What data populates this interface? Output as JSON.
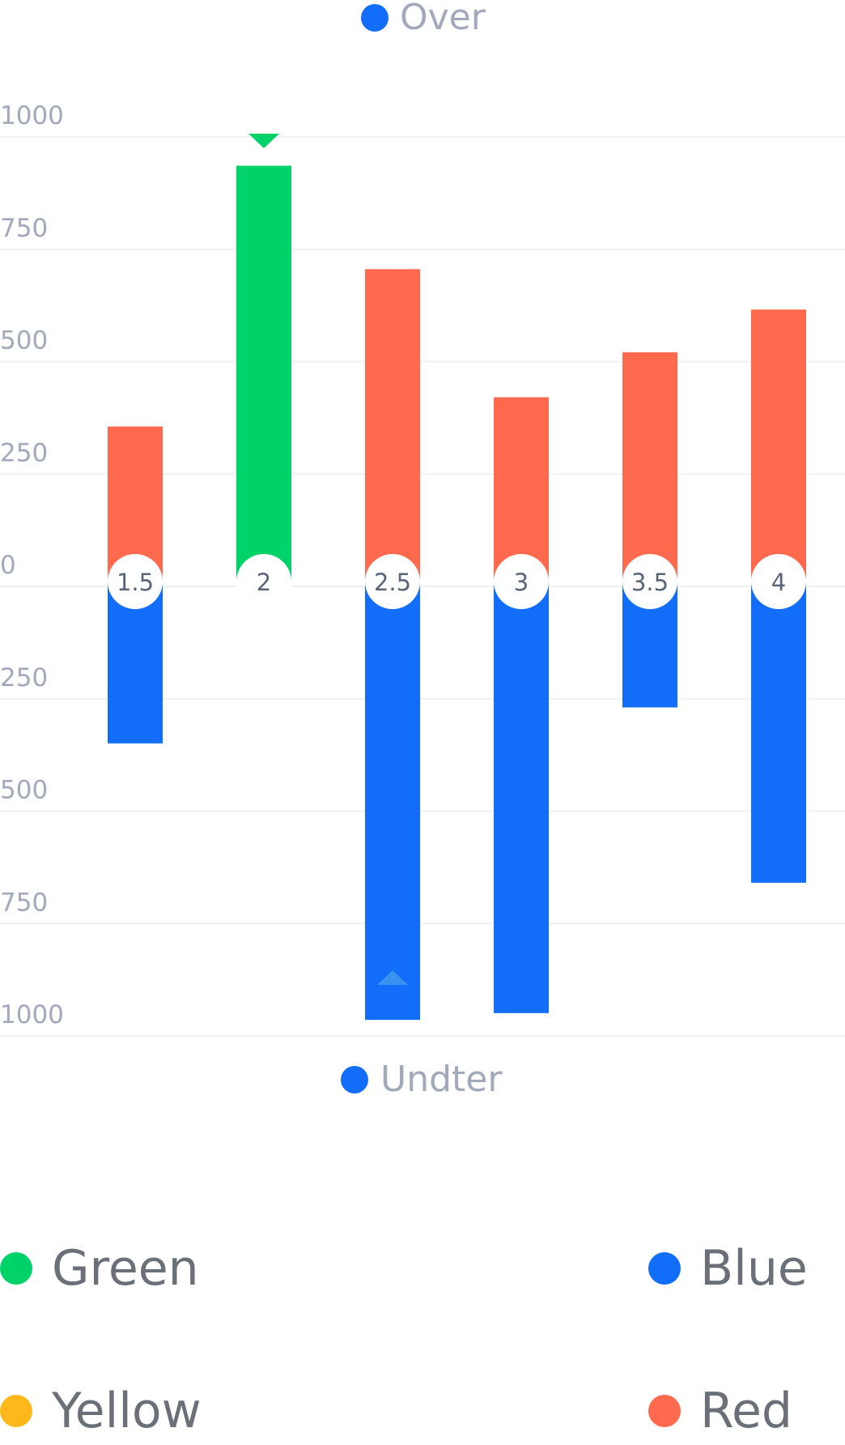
{
  "chart_data": {
    "type": "bar",
    "categories": [
      "1.5",
      "2",
      "2.5",
      "3",
      "3.5",
      "4"
    ],
    "series": [
      {
        "name": "Over",
        "values": [
          345,
          925,
          695,
          410,
          510,
          605
        ]
      },
      {
        "name": "Undter",
        "values": [
          -360,
          null,
          -975,
          -960,
          -280,
          -670
        ]
      }
    ],
    "bar_colors": {
      "positive": [
        "#ff6a4f",
        "#00d26a",
        "#ff6a4f",
        "#ff6a4f",
        "#ff6a4f",
        "#ff6a4f"
      ],
      "negative": [
        "#126ef8",
        "#126ef8",
        "#126ef8",
        "#126ef8",
        "#126ef8",
        "#126ef8"
      ]
    },
    "y_ticks": [
      "1000",
      "750",
      "500",
      "250",
      "0",
      "250",
      "500",
      "750",
      "1000"
    ],
    "ylim": [
      -1000,
      1000
    ],
    "grid": true,
    "markers": [
      {
        "category": "2",
        "position": "above",
        "color": "#00d26a"
      },
      {
        "category": "2.5",
        "position": "below",
        "color": "#3a92f0"
      }
    ],
    "top_legend": {
      "label": "Over",
      "color": "#126ef8"
    },
    "bottom_legend": {
      "label": "Undter",
      "color": "#126ef8"
    },
    "legend": [
      {
        "label": "Green",
        "color": "#00d26a"
      },
      {
        "label": "Blue",
        "color": "#126ef8"
      },
      {
        "label": "Yellow",
        "color": "#ffb81c"
      },
      {
        "label": "Red",
        "color": "#ff6a4f"
      }
    ]
  }
}
